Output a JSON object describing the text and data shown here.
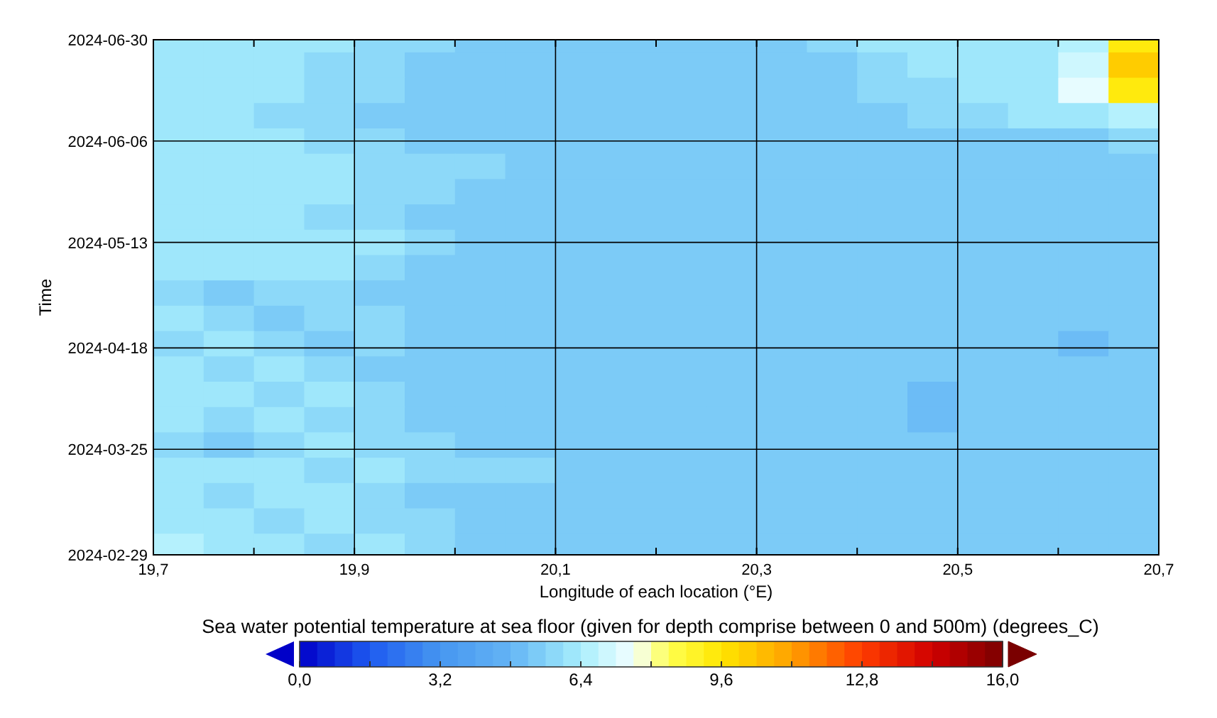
{
  "chart_data": {
    "type": "heatmap",
    "xlabel": "Longitude of each location (°E)",
    "ylabel": "Time",
    "clabel": "Sea water potential temperature at sea floor (given for depth comprise between 0 and 500m) (degrees_C)",
    "x": [
      19.725,
      19.775,
      19.825,
      19.875,
      19.925,
      19.975,
      20.025,
      20.075,
      20.125,
      20.175,
      20.225,
      20.275,
      20.325,
      20.375,
      20.425,
      20.475,
      20.525,
      20.575,
      20.625,
      20.675
    ],
    "y": [
      "2024-06-30",
      "2024-06-24",
      "2024-06-18",
      "2024-06-12",
      "2024-06-06",
      "2024-05-31",
      "2024-05-25",
      "2024-05-19",
      "2024-05-13",
      "2024-05-07",
      "2024-05-01",
      "2024-04-25",
      "2024-04-19",
      "2024-04-13",
      "2024-04-07",
      "2024-04-01",
      "2024-03-26",
      "2024-03-20",
      "2024-03-14",
      "2024-03-08",
      "2024-03-02"
    ],
    "xlim": [
      19.7,
      20.7
    ],
    "xticks": [
      {
        "value": 19.7,
        "label": "19,7"
      },
      {
        "value": 19.8,
        "label": null
      },
      {
        "value": 19.9,
        "label": "19,9"
      },
      {
        "value": 20.0,
        "label": null
      },
      {
        "value": 20.1,
        "label": "20,1"
      },
      {
        "value": 20.2,
        "label": null
      },
      {
        "value": 20.3,
        "label": "20,3"
      },
      {
        "value": 20.4,
        "label": null
      },
      {
        "value": 20.5,
        "label": "20,5"
      },
      {
        "value": 20.6,
        "label": null
      },
      {
        "value": 20.7,
        "label": "20,7"
      }
    ],
    "ylim": [
      "2024-02-29",
      "2024-06-30"
    ],
    "yticks": [
      "2024-02-29",
      "2024-03-25",
      "2024-04-18",
      "2024-05-13",
      "2024-06-06",
      "2024-06-30"
    ],
    "grid": true,
    "clim": [
      0,
      16
    ],
    "cticks": [
      {
        "value": 0,
        "label": "0,0"
      },
      {
        "value": 1.6,
        "label": null
      },
      {
        "value": 3.2,
        "label": "3,2"
      },
      {
        "value": 4.8,
        "label": null
      },
      {
        "value": 6.4,
        "label": "6,4"
      },
      {
        "value": 8,
        "label": null
      },
      {
        "value": 9.6,
        "label": "9,6"
      },
      {
        "value": 11.2,
        "label": null
      },
      {
        "value": 12.8,
        "label": "12,8"
      },
      {
        "value": 14.4,
        "label": null
      },
      {
        "value": 16,
        "label": "16,0"
      }
    ],
    "cells": [
      [
        6.2,
        6.0,
        6.0,
        6.0,
        5.8,
        5.8,
        5.6,
        5.6,
        5.6,
        5.6,
        5.6,
        5.6,
        5.6,
        5.8,
        6.0,
        6.0,
        6.0,
        6.2,
        6.4,
        9.6
      ],
      [
        6.0,
        6.0,
        6.2,
        5.8,
        5.8,
        5.6,
        5.6,
        5.6,
        5.6,
        5.6,
        5.6,
        5.6,
        5.6,
        5.6,
        5.8,
        6.0,
        6.0,
        6.0,
        6.8,
        10.0
      ],
      [
        6.0,
        6.0,
        6.0,
        5.8,
        5.8,
        5.6,
        5.6,
        5.6,
        5.6,
        5.6,
        5.6,
        5.6,
        5.6,
        5.6,
        5.8,
        5.8,
        6.0,
        6.0,
        7.2,
        9.6
      ],
      [
        6.0,
        6.0,
        5.8,
        5.8,
        5.6,
        5.6,
        5.6,
        5.6,
        5.6,
        5.6,
        5.6,
        5.6,
        5.6,
        5.6,
        5.6,
        5.8,
        5.8,
        6.0,
        6.0,
        6.4
      ],
      [
        6.0,
        6.0,
        6.0,
        5.8,
        5.8,
        5.6,
        5.6,
        5.6,
        5.6,
        5.6,
        5.6,
        5.6,
        5.6,
        5.6,
        5.6,
        5.6,
        5.6,
        5.6,
        5.6,
        5.8
      ],
      [
        6.2,
        6.0,
        6.0,
        6.0,
        5.8,
        5.8,
        5.8,
        5.6,
        5.6,
        5.6,
        5.6,
        5.6,
        5.6,
        5.6,
        5.6,
        5.6,
        5.6,
        5.6,
        5.6,
        5.6
      ],
      [
        6.0,
        6.0,
        6.0,
        6.0,
        5.8,
        5.8,
        5.6,
        5.6,
        5.6,
        5.6,
        5.6,
        5.6,
        5.6,
        5.6,
        5.6,
        5.6,
        5.6,
        5.6,
        5.6,
        5.6
      ],
      [
        6.0,
        6.0,
        6.0,
        5.8,
        5.8,
        5.6,
        5.6,
        5.6,
        5.6,
        5.6,
        5.6,
        5.6,
        5.6,
        5.6,
        5.6,
        5.6,
        5.6,
        5.6,
        5.6,
        5.6
      ],
      [
        6.0,
        6.0,
        6.0,
        6.0,
        6.0,
        5.8,
        5.6,
        5.6,
        5.6,
        5.6,
        5.6,
        5.6,
        5.6,
        5.6,
        5.6,
        5.6,
        5.6,
        5.6,
        5.6,
        5.6
      ],
      [
        6.0,
        6.0,
        6.0,
        6.0,
        5.8,
        5.6,
        5.6,
        5.6,
        5.6,
        5.6,
        5.6,
        5.6,
        5.6,
        5.6,
        5.6,
        5.6,
        5.6,
        5.6,
        5.4,
        5.4
      ],
      [
        5.8,
        5.6,
        5.8,
        5.8,
        5.6,
        5.6,
        5.4,
        5.4,
        5.4,
        5.4,
        5.4,
        5.4,
        5.4,
        5.4,
        5.4,
        5.4,
        5.4,
        5.4,
        5.4,
        5.4
      ],
      [
        6.0,
        5.8,
        5.6,
        5.8,
        5.8,
        5.6,
        5.4,
        5.4,
        5.4,
        5.4,
        5.4,
        5.4,
        5.4,
        5.2,
        5.2,
        5.2,
        5.2,
        5.2,
        5.2,
        5.2
      ],
      [
        5.8,
        6.0,
        5.8,
        5.6,
        5.8,
        5.6,
        5.6,
        5.4,
        5.4,
        5.4,
        5.4,
        5.4,
        5.2,
        5.2,
        5.2,
        5.2,
        5.2,
        5.2,
        5.0,
        5.2
      ],
      [
        6.0,
        5.8,
        6.0,
        5.8,
        5.6,
        5.6,
        5.4,
        5.4,
        5.4,
        5.4,
        5.4,
        5.4,
        5.2,
        5.2,
        5.2,
        5.2,
        5.2,
        5.2,
        5.2,
        5.2
      ],
      [
        6.2,
        6.0,
        5.8,
        6.0,
        5.8,
        5.6,
        5.6,
        5.4,
        5.4,
        5.4,
        5.4,
        5.4,
        5.4,
        5.2,
        5.2,
        5.0,
        5.2,
        5.2,
        5.2,
        5.2
      ],
      [
        6.0,
        5.8,
        6.0,
        5.8,
        5.8,
        5.6,
        5.6,
        5.6,
        5.4,
        5.4,
        5.4,
        5.4,
        5.4,
        5.2,
        5.2,
        5.0,
        5.2,
        5.2,
        5.2,
        5.2
      ],
      [
        5.8,
        5.6,
        5.8,
        6.0,
        5.8,
        5.8,
        5.6,
        5.6,
        5.6,
        5.4,
        5.4,
        5.4,
        5.4,
        5.2,
        5.2,
        5.2,
        5.2,
        5.2,
        5.2,
        5.2
      ],
      [
        6.2,
        6.0,
        6.0,
        5.8,
        6.0,
        5.8,
        5.8,
        5.8,
        5.6,
        5.6,
        5.4,
        5.4,
        5.4,
        5.2,
        5.2,
        5.2,
        5.2,
        5.2,
        5.2,
        5.2
      ],
      [
        6.0,
        5.8,
        6.0,
        6.0,
        5.8,
        5.6,
        5.6,
        5.6,
        5.6,
        5.4,
        5.4,
        5.4,
        5.4,
        5.2,
        5.2,
        5.2,
        5.2,
        5.2,
        5.2,
        5.2
      ],
      [
        6.2,
        6.0,
        5.8,
        6.0,
        5.8,
        5.8,
        5.6,
        5.6,
        5.6,
        5.4,
        5.4,
        5.4,
        5.4,
        5.2,
        5.2,
        5.2,
        5.2,
        5.2,
        5.2,
        5.2
      ],
      [
        6.4,
        6.0,
        6.0,
        5.8,
        6.0,
        5.8,
        5.6,
        5.6,
        5.6,
        5.4,
        5.4,
        5.4,
        5.4,
        5.2,
        5.2,
        5.2,
        5.2,
        5.2,
        5.2,
        5.2
      ]
    ]
  }
}
